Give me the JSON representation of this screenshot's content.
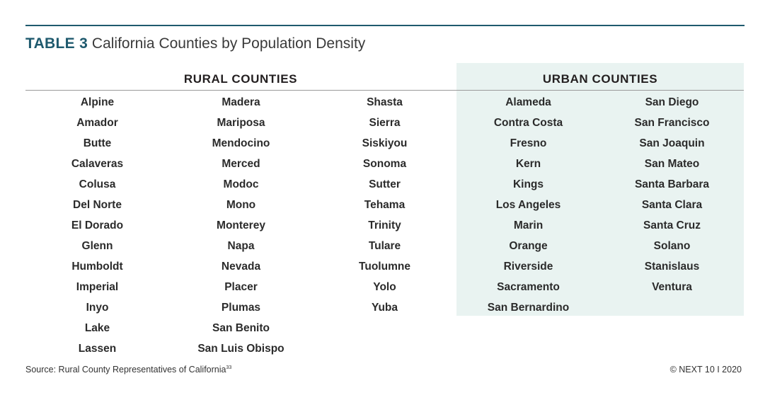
{
  "table": {
    "label": "TABLE 3",
    "title": "California Counties by Population Density"
  },
  "rural": {
    "header": "RURAL COUNTIES",
    "columns": [
      [
        "Alpine",
        "Amador",
        "Butte",
        "Calaveras",
        "Colusa",
        "Del Norte",
        "El Dorado",
        "Glenn",
        "Humboldt",
        "Imperial",
        "Inyo",
        "Lake",
        "Lassen"
      ],
      [
        "Madera",
        "Mariposa",
        "Mendocino",
        "Merced",
        "Modoc",
        "Mono",
        "Monterey",
        "Napa",
        "Nevada",
        "Placer",
        "Plumas",
        "San Benito",
        "San Luis Obispo"
      ],
      [
        "Shasta",
        "Sierra",
        "Siskiyou",
        "Sonoma",
        "Sutter",
        "Tehama",
        "Trinity",
        "Tulare",
        "Tuolumne",
        "Yolo",
        "Yuba"
      ]
    ]
  },
  "urban": {
    "header": "URBAN COUNTIES",
    "columns": [
      [
        "Alameda",
        "Contra Costa",
        "Fresno",
        "Kern",
        "Kings",
        "Los Angeles",
        "Marin",
        "Orange",
        "Riverside",
        "Sacramento",
        "San Bernardino"
      ],
      [
        "San Diego",
        "San Francisco",
        "San Joaquin",
        "San Mateo",
        "Santa Barbara",
        "Santa Clara",
        "Santa Cruz",
        "Solano",
        "Stanislaus",
        "Ventura"
      ]
    ]
  },
  "footer": {
    "source": "Source: Rural County Representatives of California",
    "footnote": "33",
    "copyright": "© NEXT 10 I 2020"
  }
}
